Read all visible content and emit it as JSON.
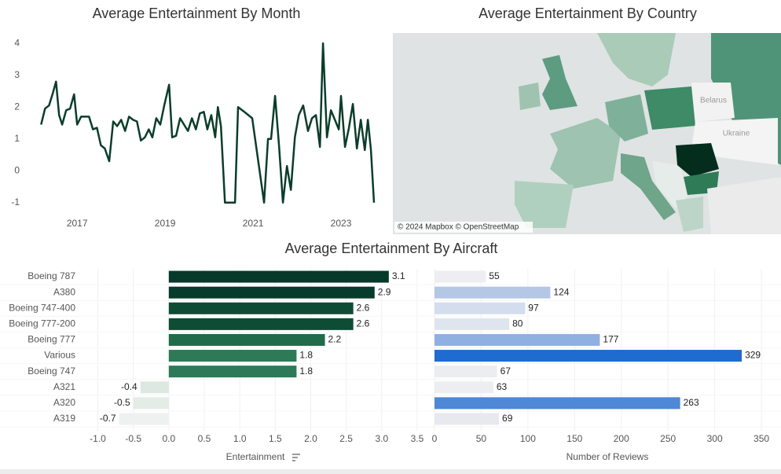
{
  "chart_data": [
    {
      "type": "line",
      "title": "Average Entertainment By Month",
      "color": "#0b3d2a",
      "x": [
        2016.18,
        2016.27,
        2016.36,
        2016.45,
        2016.52,
        2016.59,
        2016.66,
        2016.75,
        2016.84,
        2016.93,
        2017.0,
        2017.09,
        2017.18,
        2017.27,
        2017.36,
        2017.45,
        2017.54,
        2017.63,
        2017.73,
        2017.82,
        2017.91,
        2018.0,
        2018.09,
        2018.18,
        2018.27,
        2018.36,
        2018.45,
        2018.54,
        2018.63,
        2018.71,
        2018.8,
        2018.89,
        2018.98,
        2019.09,
        2019.16,
        2019.25,
        2019.34,
        2019.43,
        2019.52,
        2019.61,
        2019.7,
        2019.79,
        2019.88,
        2019.96,
        2020.05,
        2020.14,
        2020.2,
        2020.27,
        2020.36,
        2020.59,
        2020.66,
        2020.8,
        2020.98,
        2021.25,
        2021.34,
        2021.41,
        2021.5,
        2021.59,
        2021.68,
        2021.77,
        2021.86,
        2021.95,
        2022.04,
        2022.14,
        2022.25,
        2022.34,
        2022.43,
        2022.52,
        2022.59,
        2022.68,
        2022.77,
        2022.86,
        2022.95,
        2023.0,
        2023.09,
        2023.18,
        2023.27,
        2023.36,
        2023.45,
        2023.54,
        2023.61,
        2023.68,
        2023.75
      ],
      "values": [
        1.45,
        1.95,
        2.05,
        2.45,
        2.8,
        1.75,
        1.45,
        1.9,
        1.95,
        2.4,
        1.45,
        1.7,
        1.7,
        1.7,
        1.3,
        1.35,
        0.8,
        0.7,
        0.3,
        1.55,
        1.4,
        1.6,
        1.25,
        1.7,
        1.6,
        1.55,
        0.95,
        1.05,
        1.3,
        1.05,
        1.65,
        1.45,
        2.05,
        2.7,
        1.05,
        1.1,
        1.65,
        1.45,
        1.25,
        1.65,
        1.3,
        1.8,
        1.85,
        1.3,
        1.75,
        1.05,
        2.0,
        1.4,
        -1,
        -1,
        2.0,
        1.85,
        1.65,
        -1,
        1.0,
        1.0,
        2.35,
        0.8,
        -1,
        0.15,
        -0.6,
        1.05,
        1.75,
        2.05,
        1.25,
        1.65,
        1.75,
        0.75,
        4,
        1.05,
        1.9,
        1.6,
        1.3,
        2.35,
        0.75,
        1.35,
        2.1,
        0.7,
        1.6,
        0.65,
        1.6,
        0.65,
        -1
      ],
      "xlim": [
        2016.05,
        2024.0
      ],
      "xticks": [
        2017,
        2019,
        2021,
        2023
      ],
      "ylim": [
        -1.3,
        4.25
      ],
      "yticks": [
        4,
        3,
        2,
        1,
        0,
        -1
      ]
    },
    {
      "type": "map",
      "title": "Average Entertainment By Country",
      "labels": [
        "Belarus",
        "Ukraine"
      ],
      "attribution": "© 2024 Mapbox © OpenStreetMap"
    },
    {
      "type": "hbar",
      "title": "Average Entertainment By Aircraft",
      "x_label": "Entertainment",
      "categories": [
        "Boeing 787",
        "A380",
        "Boeing 747-400",
        "Boeing 777-200",
        "Boeing 777",
        "Various",
        "Boeing 747",
        "A321",
        "A320",
        "A319"
      ],
      "values": [
        3.1,
        2.9,
        2.6,
        2.6,
        2.2,
        1.8,
        1.8,
        -0.4,
        -0.5,
        -0.7
      ],
      "colors": [
        "#06392a",
        "#073b2b",
        "#0e4c35",
        "#0e4c35",
        "#1f6b4a",
        "#2e7a58",
        "#2e7a58",
        "#dde8e2",
        "#e3ece7",
        "#eef1ef"
      ],
      "xlim": [
        -1.05,
        3.6
      ],
      "xticks": [
        {
          "value": -1,
          "label": "-1.0"
        },
        -0.5,
        {
          "value": 0,
          "label": "0.0"
        },
        0.5,
        {
          "value": 1,
          "label": "1.0"
        },
        1.5,
        {
          "value": 2,
          "label": "2.0"
        },
        2.5,
        {
          "value": 3,
          "label": "3.0"
        },
        3.5
      ]
    },
    {
      "type": "hbar",
      "x_label": "Number of Reviews",
      "values": [
        55,
        124,
        97,
        80,
        177,
        329,
        67,
        63,
        263,
        69
      ],
      "colors": [
        "#eeeef2",
        "#b4c8e6",
        "#d4dded",
        "#dfe5ef",
        "#8fb0e0",
        "#1f6bcf",
        "#ebedf1",
        "#eceef1",
        "#4f88d6",
        "#e7e9ef"
      ],
      "xlim": [
        0,
        355
      ],
      "xticks": [
        0,
        50,
        100,
        150,
        200,
        250,
        300,
        350
      ]
    }
  ]
}
